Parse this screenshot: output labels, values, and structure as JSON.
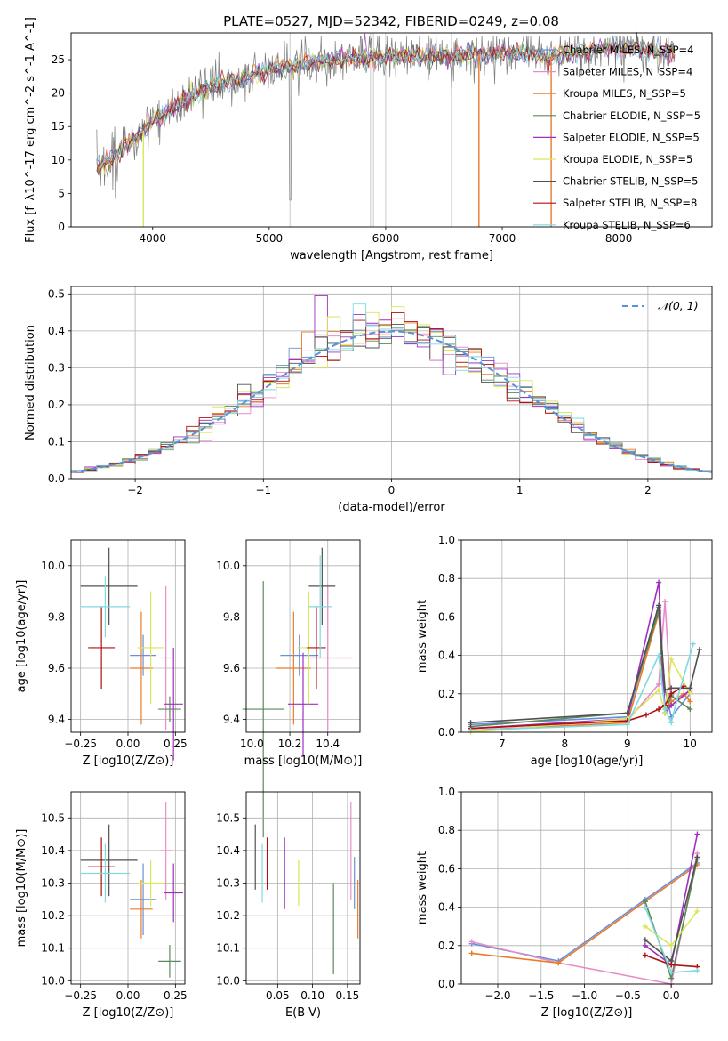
{
  "figure": {
    "title": "PLATE=0527, MJD=52342, FIBERID=0249, z=0.08",
    "colors": {
      "chab_miles": "#6a8fd8",
      "salp_miles": "#e88cc8",
      "krou_miles": "#e87c2a",
      "chab_elodie": "#5a8a5a",
      "salp_elodie": "#a030c0",
      "krou_elodie": "#d8e858",
      "chab_stelib": "#505050",
      "salp_stelib": "#b01010",
      "krou_stelib": "#80d8e0"
    }
  },
  "chart_data": [
    {
      "id": "spectrum",
      "type": "line",
      "xlabel": "wavelength [Angstrom, rest frame]",
      "ylabel": "Flux [f_λ10^-17 erg cm^-2 s^-1 A^-1]",
      "xlim": [
        3300,
        8800
      ],
      "ylim": [
        0,
        29
      ],
      "xticks": [
        4000,
        5000,
        6000,
        7000,
        8000
      ],
      "yticks": [
        0,
        5,
        10,
        15,
        20,
        25
      ],
      "grid": false,
      "legend_position": "right",
      "legend": [
        "Chabrier MILES, N_SSP=4",
        "Salpeter MILES, N_SSP=4",
        "Kroupa MILES, N_SSP=5",
        "Chabrier ELODIE, N_SSP=5",
        "Salpeter ELODIE, N_SSP=5",
        "Kroupa ELODIE, N_SSP=5",
        "Chabrier STELIB, N_SSP=5",
        "Salpeter STELIB, N_SSP=8",
        "Kroupa STELIB, N_SSP=6"
      ],
      "continuum": {
        "x": [
          3520,
          3700,
          3900,
          4000,
          4200,
          4500,
          4800,
          5200,
          5600,
          6000,
          6400,
          6800,
          7200,
          7400,
          8000,
          8400
        ],
        "y": [
          9,
          11,
          14,
          16,
          18,
          21,
          22.5,
          24,
          25,
          25.5,
          25.5,
          25.8,
          26,
          25.5,
          27,
          26
        ]
      },
      "vlines_x": [
        5178,
        5870,
        5895,
        6000,
        6564
      ],
      "dropouts": [
        {
          "x": 3920,
          "series": "krou_elodie"
        },
        {
          "x": 6800,
          "series": "krou_miles"
        },
        {
          "x": 7420,
          "series": "krou_miles"
        }
      ]
    },
    {
      "id": "residual-hist",
      "type": "bar",
      "xlabel": "(data-model)/error",
      "ylabel": "Normed distribution",
      "xlim": [
        -2.5,
        2.5
      ],
      "ylim": [
        0,
        0.52
      ],
      "xticks": [
        -2,
        -1,
        0,
        1,
        2
      ],
      "yticks": [
        0.0,
        0.1,
        0.2,
        0.3,
        0.4,
        0.5
      ],
      "grid": true,
      "legend_position": "top-right",
      "legend": [
        "𝒩(0, 1)"
      ],
      "bin_width": 0.1
    },
    {
      "id": "age-vs-Z",
      "type": "scatter",
      "xlabel": "Z [log10(Z/Z⊙)]",
      "ylabel": "age [log10(age/yr)]",
      "xlim": [
        -0.3,
        0.3
      ],
      "ylim": [
        9.35,
        10.1
      ],
      "xticks": [
        -0.25,
        0.0,
        0.25
      ],
      "yticks": [
        9.4,
        9.6,
        9.8,
        10.0
      ],
      "grid": true,
      "points": [
        {
          "s": "chab_miles",
          "x": 0.08,
          "y": 9.65,
          "xe": 0.07,
          "ye": 0.08
        },
        {
          "s": "salp_miles",
          "x": 0.2,
          "y": 9.64,
          "xe": 0.03,
          "ye": 0.28
        },
        {
          "s": "krou_miles",
          "x": 0.07,
          "y": 9.6,
          "xe": 0.06,
          "ye": 0.22
        },
        {
          "s": "chab_elodie",
          "x": 0.22,
          "y": 9.44,
          "xe": 0.06,
          "ye": 0.05
        },
        {
          "s": "salp_elodie",
          "x": 0.24,
          "y": 9.46,
          "xe": 0.05,
          "ye": 0.22
        },
        {
          "s": "krou_elodie",
          "x": 0.12,
          "y": 9.68,
          "xe": 0.07,
          "ye": 0.22
        },
        {
          "s": "chab_stelib",
          "x": -0.1,
          "y": 9.92,
          "xe": 0.15,
          "ye": 0.15
        },
        {
          "s": "salp_stelib",
          "x": -0.14,
          "y": 9.68,
          "xe": 0.07,
          "ye": 0.16
        },
        {
          "s": "krou_stelib",
          "x": -0.12,
          "y": 9.84,
          "xe": 0.13,
          "ye": 0.12
        }
      ]
    },
    {
      "id": "age-vs-mass",
      "type": "scatter",
      "xlabel": "mass [log10(M/M⊙)]",
      "ylabel": "",
      "xlim": [
        9.97,
        10.57
      ],
      "ylim": [
        9.35,
        10.1
      ],
      "xticks": [
        10.0,
        10.2,
        10.4
      ],
      "yticks": [
        9.4,
        9.6,
        9.8,
        10.0
      ],
      "grid": true,
      "points": [
        {
          "s": "chab_miles",
          "x": 10.25,
          "y": 9.65,
          "xe": 0.1,
          "ye": 0.08
        },
        {
          "s": "salp_miles",
          "x": 10.4,
          "y": 9.64,
          "xe": 0.13,
          "ye": 0.28
        },
        {
          "s": "krou_miles",
          "x": 10.22,
          "y": 9.6,
          "xe": 0.09,
          "ye": 0.22
        },
        {
          "s": "chab_elodie",
          "x": 10.06,
          "y": 9.44,
          "xe": 0.11,
          "ye": 0.5
        },
        {
          "s": "salp_elodie",
          "x": 10.27,
          "y": 9.46,
          "xe": 0.08,
          "ye": 0.2
        },
        {
          "s": "krou_elodie",
          "x": 10.3,
          "y": 9.68,
          "xe": 0.06,
          "ye": 0.22
        },
        {
          "s": "chab_stelib",
          "x": 10.37,
          "y": 9.92,
          "xe": 0.07,
          "ye": 0.15
        },
        {
          "s": "salp_stelib",
          "x": 10.34,
          "y": 9.68,
          "xe": 0.05,
          "ye": 0.16
        },
        {
          "s": "krou_stelib",
          "x": 10.36,
          "y": 9.84,
          "xe": 0.06,
          "ye": 0.2
        }
      ]
    },
    {
      "id": "weight-vs-age",
      "type": "line",
      "xlabel": "age [log10(age/yr)]",
      "ylabel": "mass weight",
      "xlim": [
        6.35,
        10.35
      ],
      "ylim": [
        0,
        1.0
      ],
      "xticks": [
        7,
        8,
        9,
        10
      ],
      "yticks": [
        0.0,
        0.2,
        0.4,
        0.6,
        0.8,
        1.0
      ],
      "grid": true,
      "series": [
        {
          "s": "chab_miles",
          "x": [
            6.5,
            9.0,
            9.5,
            9.6,
            9.7,
            10.0
          ],
          "y": [
            0.04,
            0.08,
            0.65,
            0.22,
            0.08,
            0.2
          ]
        },
        {
          "s": "salp_miles",
          "x": [
            6.5,
            9.0,
            9.5,
            9.6,
            9.7,
            10.0
          ],
          "y": [
            0.02,
            0.06,
            0.25,
            0.68,
            0.14,
            0.21
          ]
        },
        {
          "s": "krou_miles",
          "x": [
            6.5,
            9.0,
            9.5,
            9.6,
            9.7,
            9.9,
            10.0
          ],
          "y": [
            0.01,
            0.05,
            0.62,
            0.1,
            0.16,
            0.2,
            0.16
          ]
        },
        {
          "s": "chab_elodie",
          "x": [
            6.5,
            9.0,
            9.5,
            9.6,
            9.7,
            10.0
          ],
          "y": [
            0.03,
            0.1,
            0.63,
            0.1,
            0.19,
            0.12
          ]
        },
        {
          "s": "salp_elodie",
          "x": [
            6.5,
            9.0,
            9.5,
            9.6,
            9.7,
            10.0
          ],
          "y": [
            0.02,
            0.07,
            0.78,
            0.1,
            0.14,
            0.22
          ]
        },
        {
          "s": "krou_elodie",
          "x": [
            6.5,
            9.0,
            9.5,
            9.6,
            9.7,
            10.0
          ],
          "y": [
            0.0,
            0.07,
            0.22,
            0.1,
            0.38,
            0.2
          ]
        },
        {
          "s": "chab_stelib",
          "x": [
            6.5,
            9.0,
            9.5,
            9.6,
            9.7,
            10.0,
            10.15
          ],
          "y": [
            0.05,
            0.1,
            0.66,
            0.22,
            0.23,
            0.23,
            0.43
          ]
        },
        {
          "s": "salp_stelib",
          "x": [
            6.5,
            9.0,
            9.3,
            9.5,
            9.6,
            9.7,
            9.9
          ],
          "y": [
            0.02,
            0.06,
            0.09,
            0.12,
            0.14,
            0.2,
            0.24
          ]
        },
        {
          "s": "krou_stelib",
          "x": [
            6.5,
            9.0,
            9.5,
            9.6,
            9.7,
            9.8,
            10.05
          ],
          "y": [
            0.01,
            0.04,
            0.4,
            0.12,
            0.05,
            0.18,
            0.46
          ]
        }
      ]
    },
    {
      "id": "mass-vs-Z",
      "type": "scatter",
      "xlabel": "Z [log10(Z/Z⊙)]",
      "ylabel": "mass [log10(M/M⊙)]",
      "xlim": [
        -0.3,
        0.3
      ],
      "ylim": [
        9.99,
        10.58
      ],
      "xticks": [
        -0.25,
        0.0,
        0.25
      ],
      "yticks": [
        10.0,
        10.1,
        10.2,
        10.3,
        10.4,
        10.5
      ],
      "grid": true,
      "points": [
        {
          "s": "chab_miles",
          "x": 0.08,
          "y": 10.25,
          "xe": 0.07,
          "ye": 0.11
        },
        {
          "s": "salp_miles",
          "x": 0.2,
          "y": 10.4,
          "xe": 0.03,
          "ye": 0.15
        },
        {
          "s": "krou_miles",
          "x": 0.07,
          "y": 10.22,
          "xe": 0.06,
          "ye": 0.09
        },
        {
          "s": "chab_elodie",
          "x": 0.22,
          "y": 10.06,
          "xe": 0.06,
          "ye": 0.05
        },
        {
          "s": "salp_elodie",
          "x": 0.24,
          "y": 10.27,
          "xe": 0.05,
          "ye": 0.09
        },
        {
          "s": "krou_elodie",
          "x": 0.12,
          "y": 10.3,
          "xe": 0.07,
          "ye": 0.07
        },
        {
          "s": "chab_stelib",
          "x": -0.1,
          "y": 10.37,
          "xe": 0.15,
          "ye": 0.11
        },
        {
          "s": "salp_stelib",
          "x": -0.14,
          "y": 10.35,
          "xe": 0.07,
          "ye": 0.09
        },
        {
          "s": "krou_stelib",
          "x": -0.12,
          "y": 10.33,
          "xe": 0.13,
          "ye": 0.09
        }
      ]
    },
    {
      "id": "mass-vs-ebv",
      "type": "scatter",
      "xlabel": "E(B-V)",
      "ylabel": "",
      "xlim": [
        0.005,
        0.168
      ],
      "ylim": [
        9.99,
        10.58
      ],
      "xticks": [
        0.05,
        0.1,
        0.15
      ],
      "yticks": [
        10.0,
        10.1,
        10.2,
        10.3,
        10.4,
        10.5
      ],
      "grid": true,
      "points": [
        {
          "s": "chab_miles",
          "x": 0.16,
          "y": 10.3,
          "xe": 0.0,
          "ye": 0.08
        },
        {
          "s": "salp_miles",
          "x": 0.155,
          "y": 10.4,
          "xe": 0.0,
          "ye": 0.15
        },
        {
          "s": "krou_miles",
          "x": 0.165,
          "y": 10.22,
          "xe": 0.0,
          "ye": 0.09
        },
        {
          "s": "chab_elodie",
          "x": 0.13,
          "y": 10.16,
          "xe": 0.0,
          "ye": 0.14
        },
        {
          "s": "salp_elodie",
          "x": 0.06,
          "y": 10.33,
          "xe": 0.0,
          "ye": 0.11
        },
        {
          "s": "krou_elodie",
          "x": 0.08,
          "y": 10.3,
          "xe": 0.0,
          "ye": 0.07
        },
        {
          "s": "chab_stelib",
          "x": 0.018,
          "y": 10.38,
          "xe": 0.0,
          "ye": 0.1
        },
        {
          "s": "salp_stelib",
          "x": 0.035,
          "y": 10.36,
          "xe": 0.0,
          "ye": 0.08
        },
        {
          "s": "krou_stelib",
          "x": 0.028,
          "y": 10.33,
          "xe": 0.0,
          "ye": 0.09
        }
      ]
    },
    {
      "id": "weight-vs-Z",
      "type": "line",
      "xlabel": "Z [log10(Z/Z⊙)]",
      "ylabel": "mass weight",
      "xlim": [
        -2.42,
        0.47
      ],
      "ylim": [
        0,
        1.0
      ],
      "xticks": [
        -2.0,
        -1.5,
        -1.0,
        -0.5,
        0.0
      ],
      "yticks": [
        0.0,
        0.2,
        0.4,
        0.6,
        0.8,
        1.0
      ],
      "grid": true,
      "series": [
        {
          "s": "chab_miles",
          "x": [
            -2.3,
            -1.3,
            -0.3,
            0.3
          ],
          "y": [
            0.21,
            0.12,
            0.44,
            0.63
          ]
        },
        {
          "s": "salp_miles",
          "x": [
            -2.3,
            -1.3,
            0.0,
            0.3
          ],
          "y": [
            0.22,
            0.11,
            0.0,
            0.68
          ]
        },
        {
          "s": "krou_miles",
          "x": [
            -2.3,
            -1.3,
            -0.3,
            0.3
          ],
          "y": [
            0.16,
            0.11,
            0.43,
            0.62
          ]
        },
        {
          "s": "chab_elodie",
          "x": [
            -0.3,
            0.0,
            0.3
          ],
          "y": [
            0.43,
            0.03,
            0.65
          ]
        },
        {
          "s": "salp_elodie",
          "x": [
            -0.3,
            0.0,
            0.3
          ],
          "y": [
            0.2,
            0.1,
            0.78
          ]
        },
        {
          "s": "krou_elodie",
          "x": [
            -0.3,
            0.0,
            0.3
          ],
          "y": [
            0.3,
            0.2,
            0.38
          ]
        },
        {
          "s": "chab_stelib",
          "x": [
            -0.3,
            0.0,
            0.3
          ],
          "y": [
            0.23,
            0.12,
            0.66
          ]
        },
        {
          "s": "salp_stelib",
          "x": [
            -0.3,
            0.0,
            0.3
          ],
          "y": [
            0.15,
            0.1,
            0.09
          ]
        },
        {
          "s": "krou_stelib",
          "x": [
            -0.3,
            0.0,
            0.3
          ],
          "y": [
            0.4,
            0.06,
            0.07
          ]
        }
      ]
    }
  ]
}
